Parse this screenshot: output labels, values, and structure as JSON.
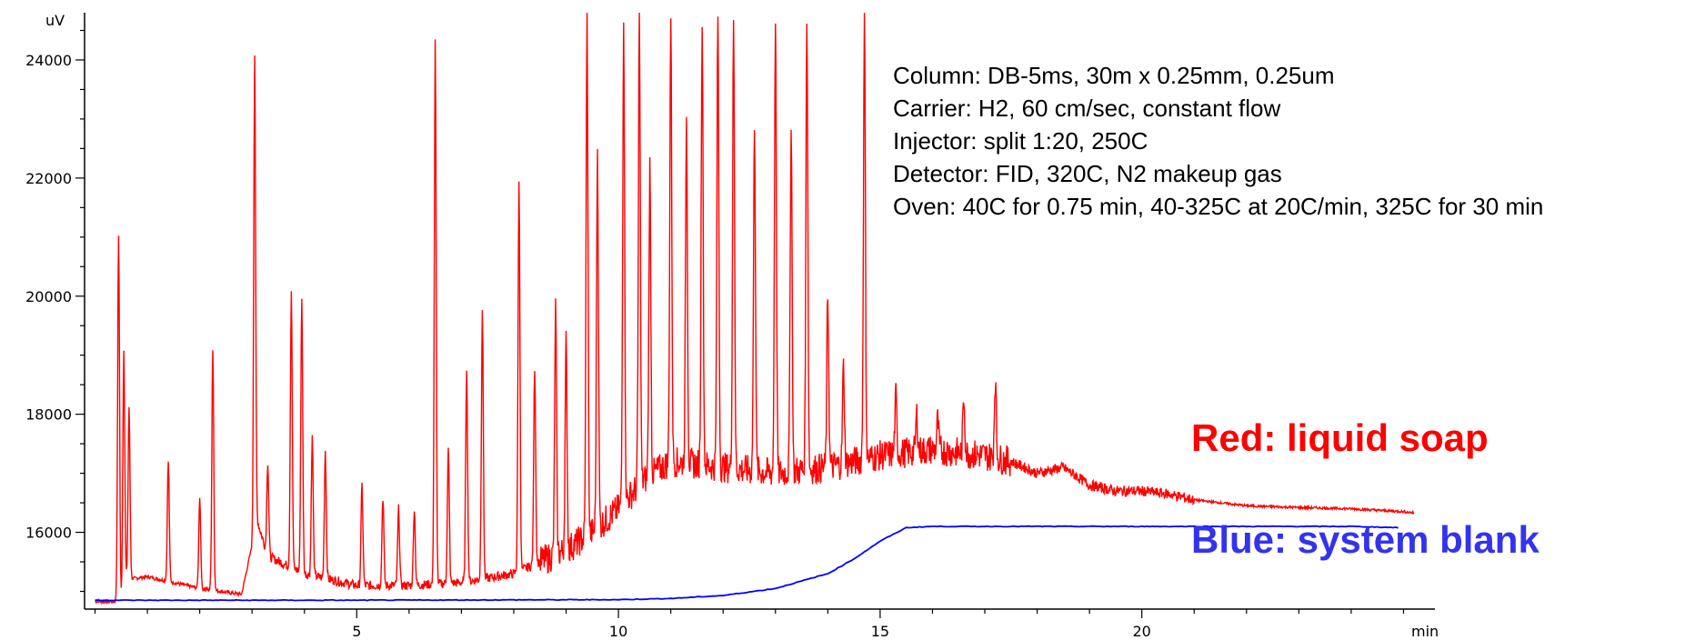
{
  "chart_data": {
    "type": "line",
    "title": "",
    "xlabel": "min",
    "ylabel": "uV",
    "xlim": [
      -0.2,
      25.6
    ],
    "ylim": [
      14700,
      24800
    ],
    "x_ticks": [
      5,
      10,
      15,
      20
    ],
    "x_tick_labels": [
      "5",
      "10",
      "15",
      "20"
    ],
    "x_unit_label": "min",
    "y_ticks": [
      16000,
      18000,
      20000,
      22000,
      24000
    ],
    "y_tick_labels": [
      "16000",
      "18000",
      "20000",
      "22000",
      "24000"
    ],
    "y_unit_label": "uV",
    "grid": false,
    "annotations": [
      "Column: DB-5ms, 30m x 0.25mm, 0.25um",
      "Carrier: H2, 60 cm/sec, constant flow",
      "Injector: split 1:20, 250C",
      "Detector: FID, 320C, N2 makeup gas",
      "Oven: 40C for 0.75 min, 40-325C at 20C/min, 325C for 30 min"
    ],
    "series": [
      {
        "name": "Red: liquid soap",
        "color": "#ff0000",
        "baseline": [
          [
            0.0,
            14830
          ],
          [
            0.5,
            14830
          ],
          [
            0.6,
            15200
          ],
          [
            1.0,
            15250
          ],
          [
            2.0,
            15050
          ],
          [
            2.8,
            14950
          ],
          [
            3.1,
            16200
          ],
          [
            3.3,
            15600
          ],
          [
            4.0,
            15300
          ],
          [
            5.0,
            15100
          ],
          [
            6.0,
            15100
          ],
          [
            7.0,
            15150
          ],
          [
            8.0,
            15300
          ],
          [
            8.5,
            15500
          ],
          [
            9.0,
            15700
          ],
          [
            9.5,
            16000
          ],
          [
            10.0,
            16400
          ],
          [
            10.5,
            16900
          ],
          [
            11.0,
            17200
          ],
          [
            12.0,
            17100
          ],
          [
            13.0,
            17000
          ],
          [
            14.0,
            17100
          ],
          [
            15.0,
            17300
          ],
          [
            16.0,
            17400
          ],
          [
            17.0,
            17300
          ],
          [
            17.5,
            17200
          ],
          [
            18.0,
            17000
          ],
          [
            18.5,
            17100
          ],
          [
            19.0,
            16800
          ],
          [
            19.5,
            16700
          ],
          [
            20.0,
            16700
          ],
          [
            20.5,
            16650
          ],
          [
            21.0,
            16550
          ],
          [
            22.0,
            16450
          ],
          [
            23.0,
            16420
          ],
          [
            24.0,
            16400
          ],
          [
            25.0,
            16350
          ],
          [
            25.2,
            16330
          ]
        ],
        "peaks": [
          [
            0.45,
            21000
          ],
          [
            0.55,
            19100
          ],
          [
            0.65,
            18100
          ],
          [
            1.4,
            17200
          ],
          [
            2.0,
            16600
          ],
          [
            2.25,
            19100
          ],
          [
            3.05,
            24100
          ],
          [
            3.3,
            17200
          ],
          [
            3.75,
            20100
          ],
          [
            3.95,
            20000
          ],
          [
            4.15,
            17600
          ],
          [
            4.4,
            17400
          ],
          [
            5.1,
            16800
          ],
          [
            5.5,
            16600
          ],
          [
            5.8,
            16400
          ],
          [
            6.1,
            16400
          ],
          [
            6.5,
            24300
          ],
          [
            6.75,
            17400
          ],
          [
            7.1,
            18800
          ],
          [
            7.4,
            19800
          ],
          [
            8.1,
            22000
          ],
          [
            8.4,
            18800
          ],
          [
            8.8,
            19800
          ],
          [
            9.0,
            19200
          ],
          [
            9.4,
            24800
          ],
          [
            9.6,
            22500
          ],
          [
            10.1,
            24800
          ],
          [
            10.4,
            24800
          ],
          [
            10.6,
            22200
          ],
          [
            11.0,
            24800
          ],
          [
            11.3,
            23000
          ],
          [
            11.6,
            24800
          ],
          [
            11.9,
            24800
          ],
          [
            12.2,
            24800
          ],
          [
            12.6,
            23000
          ],
          [
            13.0,
            24800
          ],
          [
            13.3,
            23000
          ],
          [
            13.6,
            24800
          ],
          [
            14.0,
            20000
          ],
          [
            14.3,
            18800
          ],
          [
            14.7,
            24800
          ],
          [
            15.3,
            18300
          ],
          [
            15.7,
            18000
          ],
          [
            16.1,
            17900
          ],
          [
            16.6,
            18300
          ],
          [
            17.2,
            18600
          ]
        ]
      },
      {
        "name": "Blue: system blank",
        "color": "#0000ff",
        "points": [
          [
            0.0,
            14850
          ],
          [
            5.0,
            14850
          ],
          [
            10.0,
            14860
          ],
          [
            11.0,
            14880
          ],
          [
            12.0,
            14930
          ],
          [
            13.0,
            15050
          ],
          [
            14.0,
            15300
          ],
          [
            14.5,
            15550
          ],
          [
            15.0,
            15850
          ],
          [
            15.5,
            16080
          ],
          [
            16.0,
            16100
          ],
          [
            20.0,
            16100
          ],
          [
            24.0,
            16100
          ],
          [
            24.9,
            16080
          ]
        ]
      }
    ]
  }
}
